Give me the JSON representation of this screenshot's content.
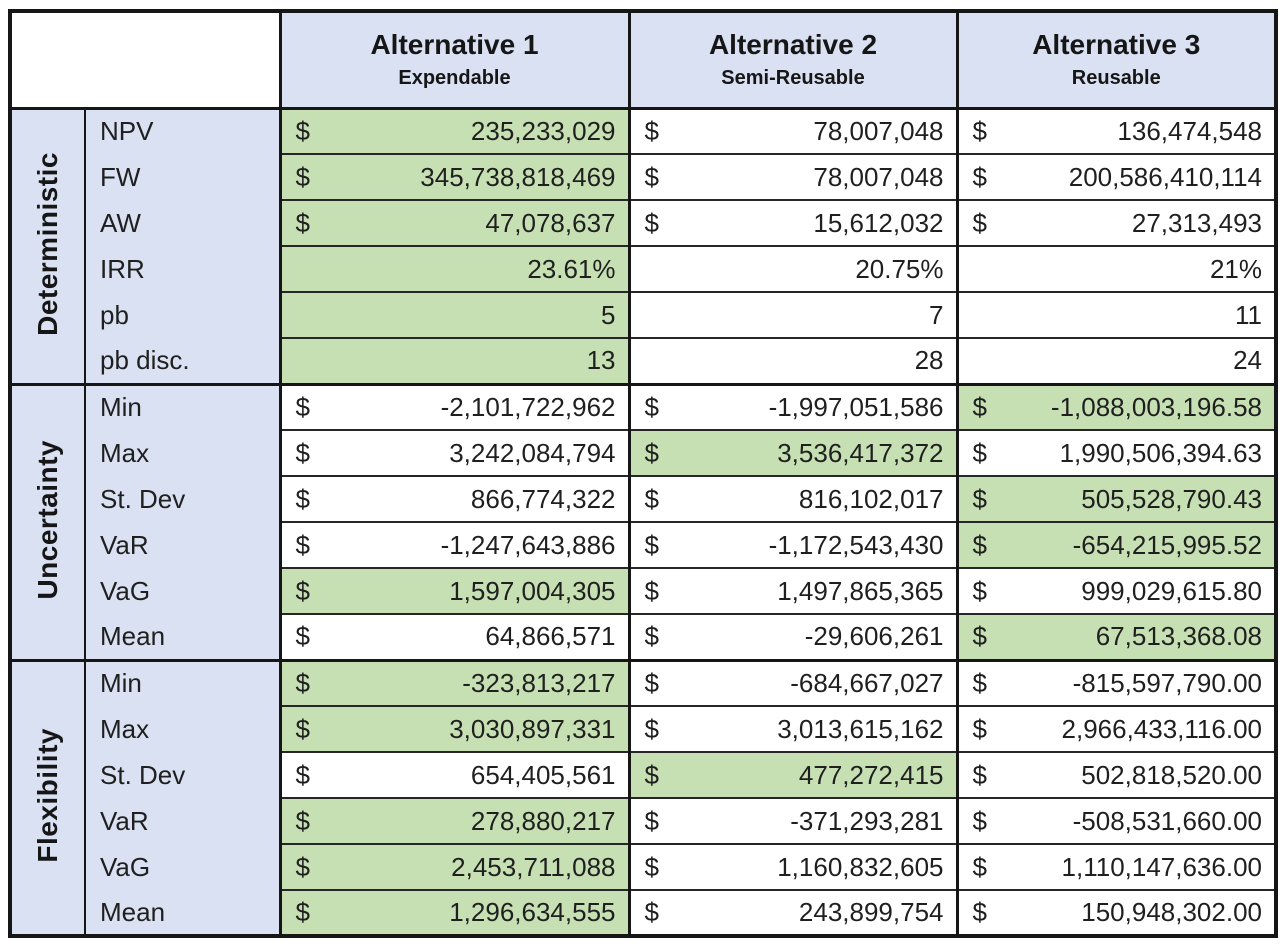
{
  "colors": {
    "header_bg": "#d9e1f2",
    "highlight_green": "#c6e0b4",
    "border": "#161616",
    "text": "#1f1f1f"
  },
  "table": {
    "columns": [
      {
        "title": "Alternative 1",
        "subtitle": "Expendable"
      },
      {
        "title": "Alternative 2",
        "subtitle": "Semi-Reusable"
      },
      {
        "title": "Alternative 3",
        "subtitle": "Reusable"
      }
    ],
    "sections": [
      {
        "name": "Deterministic",
        "rows": [
          {
            "label": "NPV",
            "cells": [
              {
                "cur": "$",
                "value": "235,233,029",
                "hl": true
              },
              {
                "cur": "$",
                "value": "78,007,048",
                "hl": false
              },
              {
                "cur": "$",
                "value": "136,474,548",
                "hl": false
              }
            ]
          },
          {
            "label": "FW",
            "cells": [
              {
                "cur": "$",
                "value": "345,738,818,469",
                "hl": true
              },
              {
                "cur": "$",
                "value": "78,007,048",
                "hl": false
              },
              {
                "cur": "$",
                "value": "200,586,410,114",
                "hl": false
              }
            ]
          },
          {
            "label": "AW",
            "cells": [
              {
                "cur": "$",
                "value": "47,078,637",
                "hl": true
              },
              {
                "cur": "$",
                "value": "15,612,032",
                "hl": false
              },
              {
                "cur": "$",
                "value": "27,313,493",
                "hl": false
              }
            ]
          },
          {
            "label": "IRR",
            "cells": [
              {
                "cur": "",
                "value": "23.61%",
                "hl": true
              },
              {
                "cur": "",
                "value": "20.75%",
                "hl": false
              },
              {
                "cur": "",
                "value": "21%",
                "hl": false
              }
            ]
          },
          {
            "label": "pb",
            "cells": [
              {
                "cur": "",
                "value": "5",
                "hl": true
              },
              {
                "cur": "",
                "value": "7",
                "hl": false
              },
              {
                "cur": "",
                "value": "11",
                "hl": false
              }
            ]
          },
          {
            "label": "pb disc.",
            "cells": [
              {
                "cur": "",
                "value": "13",
                "hl": true
              },
              {
                "cur": "",
                "value": "28",
                "hl": false
              },
              {
                "cur": "",
                "value": "24",
                "hl": false
              }
            ]
          }
        ]
      },
      {
        "name": "Uncertainty",
        "rows": [
          {
            "label": "Min",
            "cells": [
              {
                "cur": "$",
                "value": "-2,101,722,962",
                "hl": false
              },
              {
                "cur": "$",
                "value": "-1,997,051,586",
                "hl": false
              },
              {
                "cur": "$",
                "value": "-1,088,003,196.58",
                "hl": true
              }
            ]
          },
          {
            "label": "Max",
            "cells": [
              {
                "cur": "$",
                "value": "3,242,084,794",
                "hl": false
              },
              {
                "cur": "$",
                "value": "3,536,417,372",
                "hl": true
              },
              {
                "cur": "$",
                "value": "1,990,506,394.63",
                "hl": false
              }
            ]
          },
          {
            "label": "St. Dev",
            "cells": [
              {
                "cur": "$",
                "value": "866,774,322",
                "hl": false
              },
              {
                "cur": "$",
                "value": "816,102,017",
                "hl": false
              },
              {
                "cur": "$",
                "value": "505,528,790.43",
                "hl": true
              }
            ]
          },
          {
            "label": "VaR",
            "cells": [
              {
                "cur": "$",
                "value": "-1,247,643,886",
                "hl": false
              },
              {
                "cur": "$",
                "value": "-1,172,543,430",
                "hl": false
              },
              {
                "cur": "$",
                "value": "-654,215,995.52",
                "hl": true
              }
            ]
          },
          {
            "label": "VaG",
            "cells": [
              {
                "cur": "$",
                "value": "1,597,004,305",
                "hl": true
              },
              {
                "cur": "$",
                "value": "1,497,865,365",
                "hl": false
              },
              {
                "cur": "$",
                "value": "999,029,615.80",
                "hl": false
              }
            ]
          },
          {
            "label": "Mean",
            "cells": [
              {
                "cur": "$",
                "value": "64,866,571",
                "hl": false
              },
              {
                "cur": "$",
                "value": "-29,606,261",
                "hl": false
              },
              {
                "cur": "$",
                "value": "67,513,368.08",
                "hl": true
              }
            ]
          }
        ]
      },
      {
        "name": "Flexibility",
        "rows": [
          {
            "label": "Min",
            "cells": [
              {
                "cur": "$",
                "value": "-323,813,217",
                "hl": true
              },
              {
                "cur": "$",
                "value": "-684,667,027",
                "hl": false
              },
              {
                "cur": "$",
                "value": "-815,597,790.00",
                "hl": false
              }
            ]
          },
          {
            "label": "Max",
            "cells": [
              {
                "cur": "$",
                "value": "3,030,897,331",
                "hl": true
              },
              {
                "cur": "$",
                "value": "3,013,615,162",
                "hl": false
              },
              {
                "cur": "$",
                "value": "2,966,433,116.00",
                "hl": false
              }
            ]
          },
          {
            "label": "St. Dev",
            "cells": [
              {
                "cur": "$",
                "value": "654,405,561",
                "hl": false
              },
              {
                "cur": "$",
                "value": "477,272,415",
                "hl": true
              },
              {
                "cur": "$",
                "value": "502,818,520.00",
                "hl": false
              }
            ]
          },
          {
            "label": "VaR",
            "cells": [
              {
                "cur": "$",
                "value": "278,880,217",
                "hl": true
              },
              {
                "cur": "$",
                "value": "-371,293,281",
                "hl": false
              },
              {
                "cur": "$",
                "value": "-508,531,660.00",
                "hl": false
              }
            ]
          },
          {
            "label": "VaG",
            "cells": [
              {
                "cur": "$",
                "value": "2,453,711,088",
                "hl": true
              },
              {
                "cur": "$",
                "value": "1,160,832,605",
                "hl": false
              },
              {
                "cur": "$",
                "value": "1,110,147,636.00",
                "hl": false
              }
            ]
          },
          {
            "label": "Mean",
            "cells": [
              {
                "cur": "$",
                "value": "1,296,634,555",
                "hl": true
              },
              {
                "cur": "$",
                "value": "243,899,754",
                "hl": false
              },
              {
                "cur": "$",
                "value": "150,948,302.00",
                "hl": false
              }
            ]
          }
        ]
      }
    ]
  }
}
